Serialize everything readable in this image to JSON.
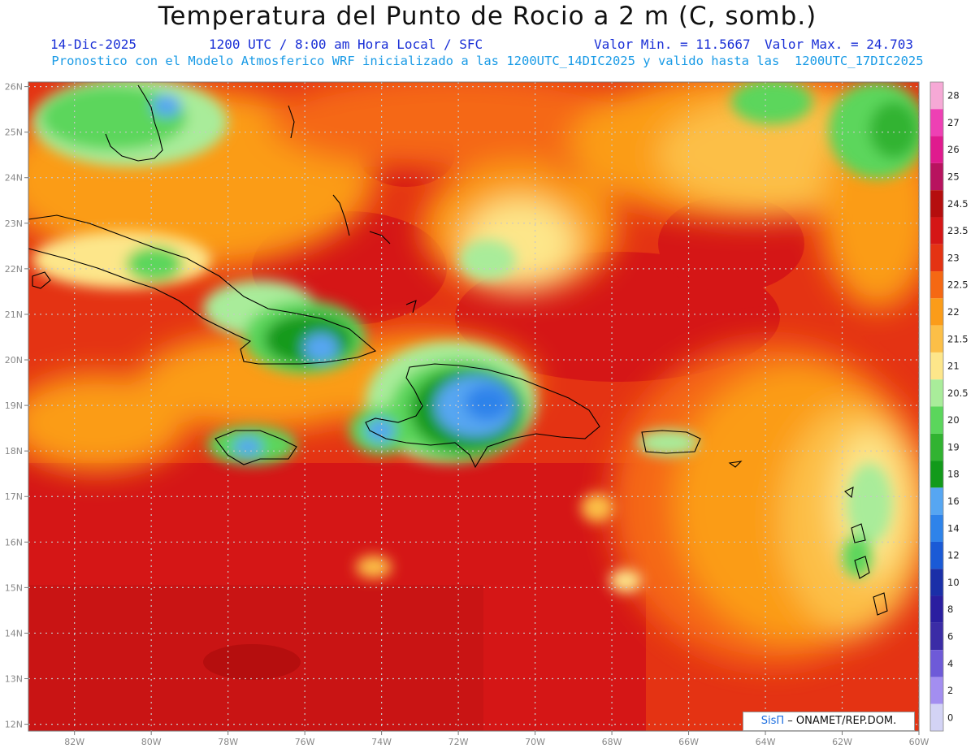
{
  "header": {
    "title": "Temperatura del Punto de Rocio a 2 m (C, somb.)",
    "date": "14-Dic-2025",
    "time": "1200 UTC / 8:00 am Hora Local / SFC",
    "min": "Valor Min. = 11.5667",
    "max": "Valor Max. = 24.703",
    "forecast": "Pronostico con el Modelo Atmosferico WRF inicializado a las 1200UTC_14DIC2025 y valido hasta las  1200UTC_17DIC2025"
  },
  "axes": {
    "lat_labels": [
      "26N",
      "25N",
      "24N",
      "23N",
      "22N",
      "21N",
      "20N",
      "19N",
      "18N",
      "17N",
      "16N",
      "15N",
      "14N",
      "13N",
      "12N"
    ],
    "lon_labels": [
      "82W",
      "80W",
      "78W",
      "76W",
      "74W",
      "72W",
      "70W",
      "68W",
      "66W",
      "64W",
      "62W",
      "60W"
    ]
  },
  "legend": {
    "labels": [
      "28",
      "27",
      "26",
      "25",
      "24.5",
      "23.5",
      "23",
      "22.5",
      "22",
      "21.5",
      "21",
      "20.5",
      "20",
      "19",
      "18",
      "16",
      "14",
      "12",
      "10",
      "8",
      "6",
      "4",
      "2",
      "0"
    ],
    "colors": [
      "#f6a9d6",
      "#ee40b4",
      "#e01a8e",
      "#b8135f",
      "#b50e0e",
      "#d51616",
      "#e43313",
      "#f56813",
      "#fb9c19",
      "#fcbf47",
      "#fde68a",
      "#a9ec9a",
      "#5bd65c",
      "#31b331",
      "#129a1a",
      "#56a6f2",
      "#2e83ea",
      "#1a5ad6",
      "#1a2fa8",
      "#2a1ea0",
      "#3b2ca6",
      "#6e5ad8",
      "#a38ef0",
      "#d3d3f5"
    ]
  },
  "credit": {
    "brand": "SisΠ",
    "text": " – ONAMET/REP.DOM."
  },
  "map_data": {
    "lon_range": [
      -83.2,
      -60.0
    ],
    "lat_range": [
      11.85,
      26.1
    ],
    "field_range": [
      11.5667,
      24.703
    ]
  }
}
